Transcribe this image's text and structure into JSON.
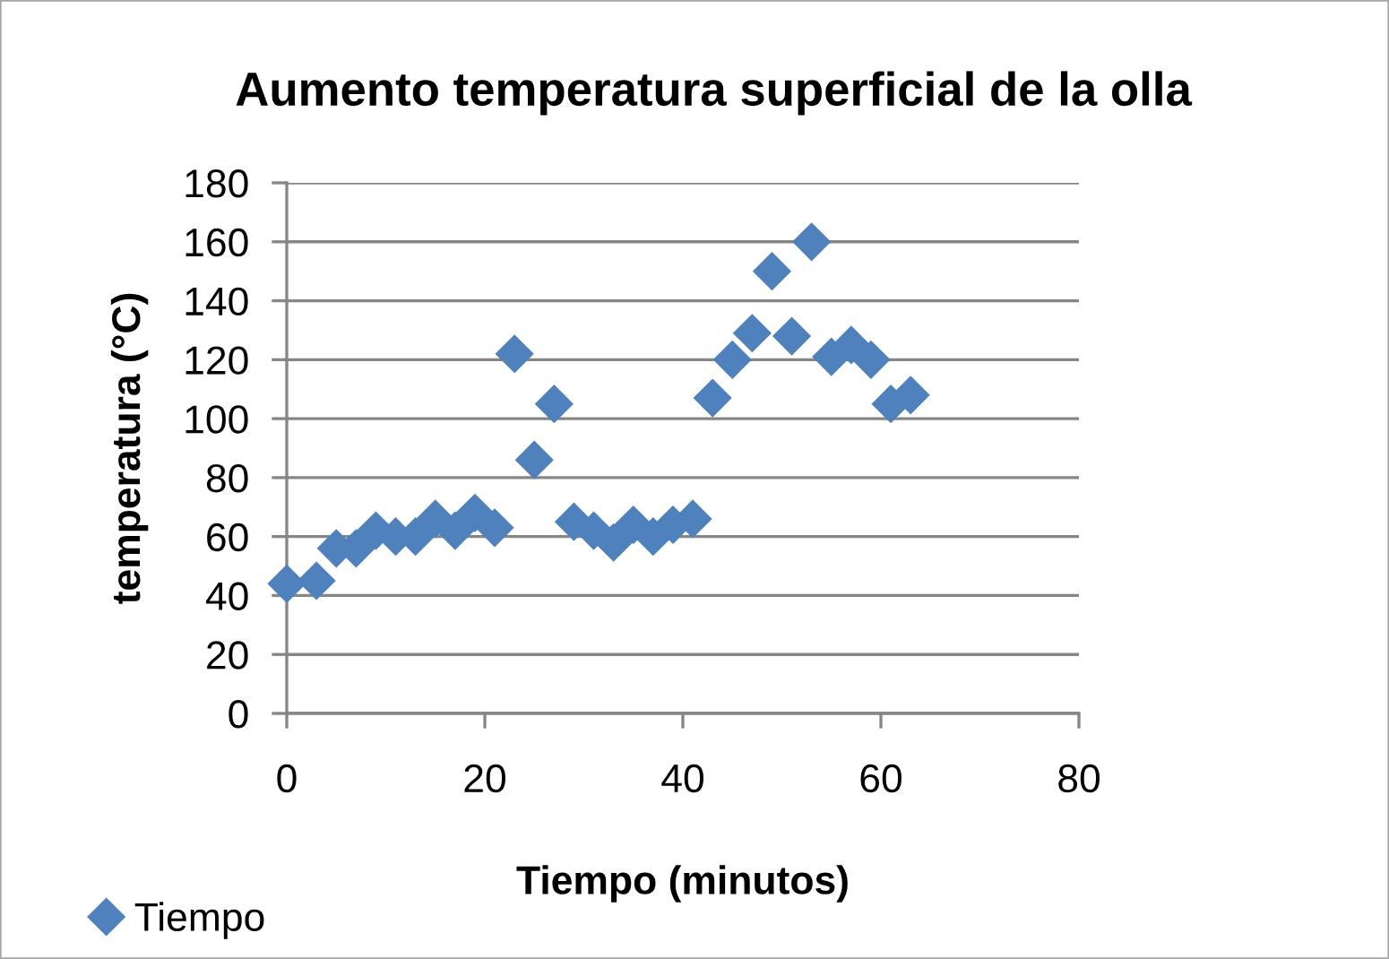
{
  "chart_data": {
    "type": "scatter",
    "title": "Aumento temperatura superficial de la olla",
    "xlabel": "Tiempo (minutos)",
    "ylabel": "temperatura (°C)",
    "x": [
      0,
      3,
      5,
      7,
      9,
      11,
      13,
      15,
      17,
      19,
      21,
      23,
      25,
      27,
      29,
      31,
      33,
      35,
      37,
      39,
      41,
      43,
      45,
      47,
      49,
      51,
      53,
      55,
      57,
      59,
      61,
      63
    ],
    "series": [
      {
        "name": "Tiempo",
        "color": "#4f81bd",
        "values": [
          44,
          45,
          56,
          56,
          62,
          60,
          60,
          66,
          62,
          68,
          63,
          122,
          86,
          105,
          65,
          62,
          58,
          64,
          60,
          64,
          66,
          107,
          120,
          129,
          150,
          128,
          160,
          121,
          125,
          120,
          105,
          108
        ]
      }
    ],
    "xlim": [
      0,
      80
    ],
    "xticks": [
      0,
      20,
      40,
      60,
      80
    ],
    "ylim": [
      0,
      180
    ],
    "yticks": [
      0,
      20,
      40,
      60,
      80,
      100,
      120,
      140,
      160,
      180
    ],
    "grid": "y",
    "legend": "bottom left",
    "marker": "diamond"
  }
}
